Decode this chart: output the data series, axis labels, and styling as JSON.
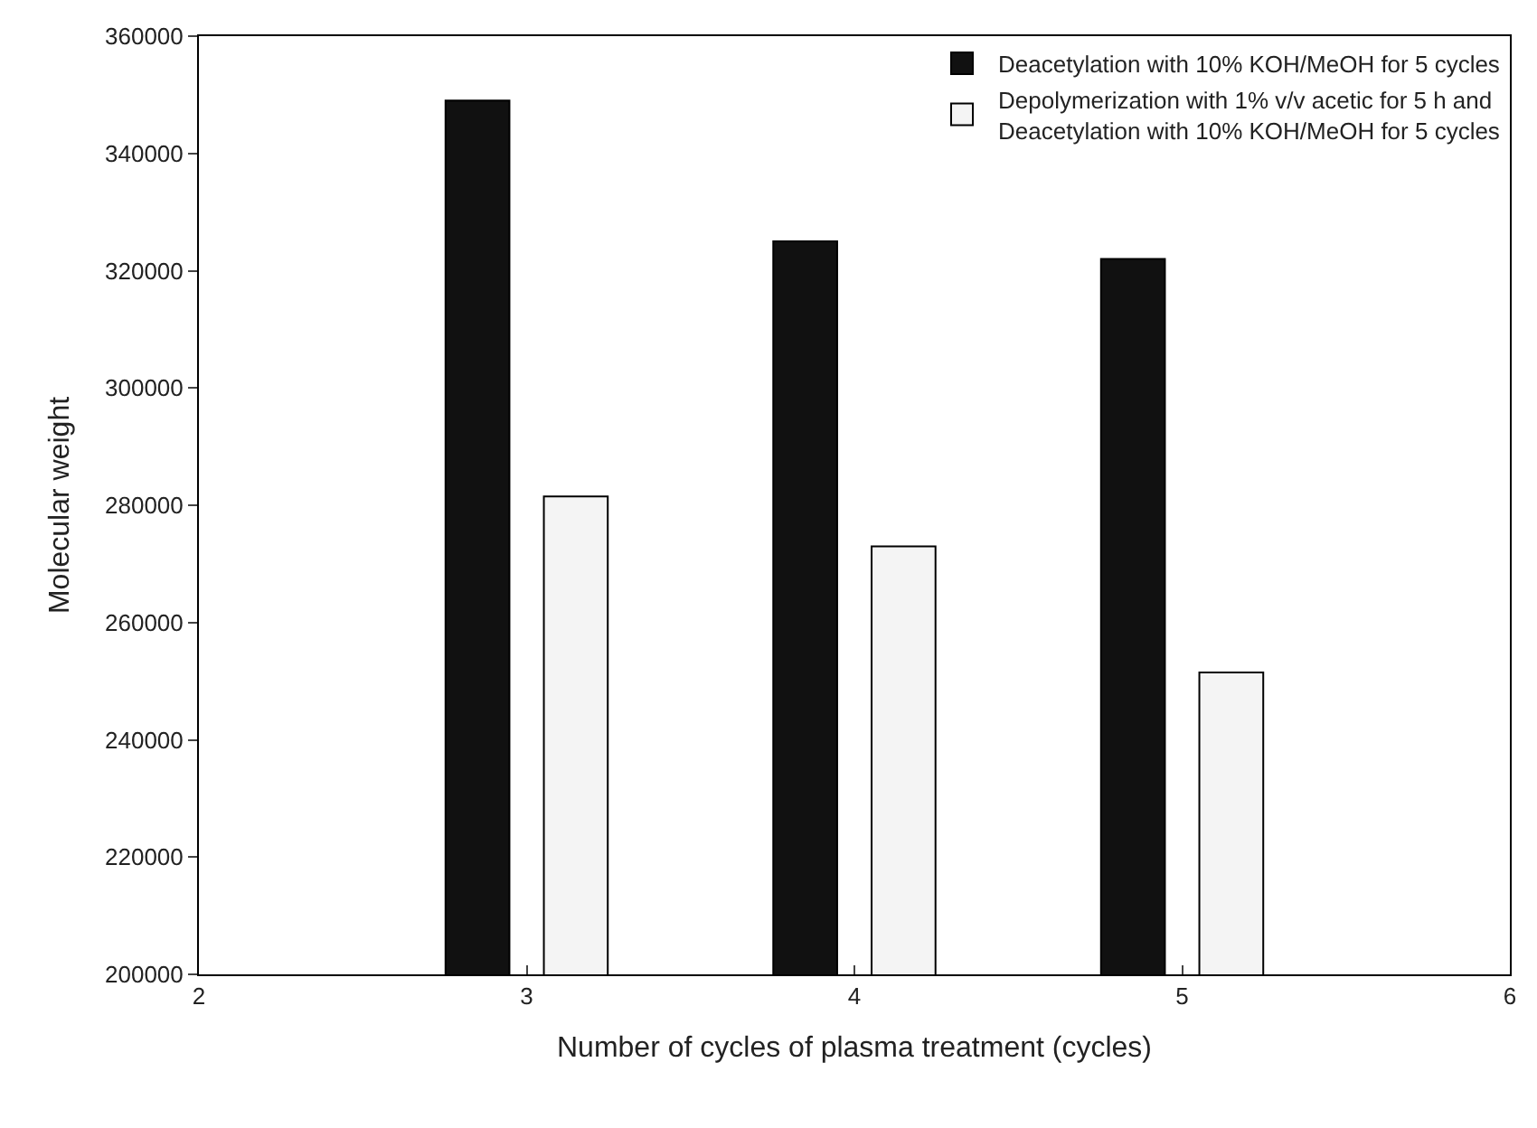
{
  "chart_data": {
    "type": "bar",
    "xlabel": "Number of cycles of plasma treatment (cycles)",
    "ylabel": "Molecular weight",
    "x": [
      3,
      4,
      5
    ],
    "series": [
      {
        "name": "Deacetylation with 10% KOH/MeOH for 5 cycles",
        "color": "#111111",
        "values": [
          349000,
          325000,
          322000
        ]
      },
      {
        "name": "Depolymerization with 1% v/v acetic for 5 h and\nDeacetylation with 10% KOH/MeOH for 5 cycles",
        "color": "#f4f4f4",
        "values": [
          281500,
          273000,
          251500
        ]
      }
    ],
    "xlim": [
      2,
      6
    ],
    "xticks": [
      2,
      3,
      4,
      5,
      6
    ],
    "ylim": [
      200000,
      360000
    ],
    "yticks": [
      200000,
      220000,
      240000,
      260000,
      280000,
      300000,
      320000,
      340000,
      360000
    ],
    "legend": "top right"
  }
}
